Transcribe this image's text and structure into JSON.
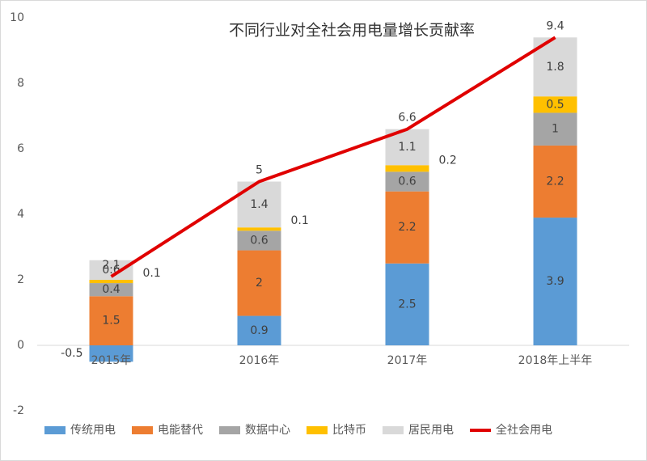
{
  "chart_data": {
    "type": "stacked-bar-line",
    "title": "不同行业对全社会用电量增长贡献率",
    "categories": [
      "2015年",
      "2016年",
      "2017年",
      "2018年上半年"
    ],
    "series": [
      {
        "name": "传统用电",
        "color": "#5b9bd5",
        "values": [
          -0.5,
          0.9,
          2.5,
          3.9
        ]
      },
      {
        "name": "电能替代",
        "color": "#ed7d31",
        "values": [
          1.5,
          2,
          2.2,
          2.2
        ]
      },
      {
        "name": "数据中心",
        "color": "#a5a5a5",
        "values": [
          0.4,
          0.6,
          0.6,
          1
        ]
      },
      {
        "name": "比特币",
        "color": "#ffc000",
        "values": [
          0.1,
          0.1,
          0.2,
          0.5
        ]
      },
      {
        "name": "居民用电",
        "color": "#d9d9d9",
        "values": [
          0.6,
          1.4,
          1.1,
          1.8
        ]
      }
    ],
    "line": {
      "name": "全社会用电",
      "color": "#e00000",
      "values": [
        2.1,
        5,
        6.6,
        9.4
      ]
    },
    "ylim": [
      -2,
      10
    ],
    "yticks": [
      -2,
      0,
      2,
      4,
      6,
      8,
      10
    ],
    "legend": "bottom"
  }
}
